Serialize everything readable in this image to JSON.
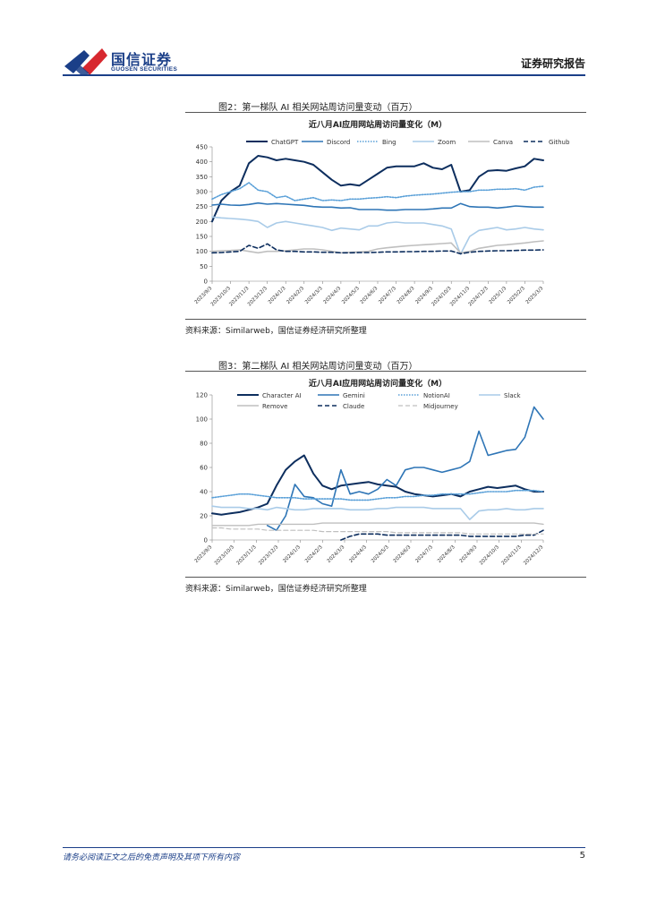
{
  "header": {
    "logo_cn": "国信证券",
    "logo_en": "GUOSEN SECURITIES",
    "report_type": "证券研究报告"
  },
  "figures": [
    {
      "title": "图2：第一梯队 AI 相关网站周访问量变动（百万）",
      "source": "资料来源：Similarweb，国信证券经济研究所整理"
    },
    {
      "title": "图3：第二梯队 AI 相关网站周访问量变动（百万）",
      "source": "资料来源：Similarweb，国信证券经济研究所整理"
    }
  ],
  "footer": {
    "disclaimer": "请务必阅读正文之后的免责声明及其项下所有内容",
    "page_number": "5"
  },
  "colors": {
    "brand_blue": "#1b3f88",
    "brand_red": "#d7282f"
  },
  "chart_data": [
    {
      "type": "line",
      "title": "近八月AI应用网站周访问量变化（M）",
      "xlabel": "",
      "ylabel": "",
      "ylim": [
        0,
        450
      ],
      "yticks": [
        0,
        50,
        100,
        150,
        200,
        250,
        300,
        350,
        400,
        450
      ],
      "x_tick_labels": [
        "2023/9/3",
        "2023/10/3",
        "2023/11/3",
        "2023/12/3",
        "2024/1/3",
        "2024/2/3",
        "2024/3/3",
        "2024/4/3",
        "2024/5/3",
        "2024/6/3",
        "2024/7/3",
        "2024/8/3",
        "2024/9/3",
        "2024/10/3",
        "2024/11/3",
        "2024/12/3",
        "2025/1/3",
        "2025/2/3",
        "2025/3/3"
      ],
      "x_count": 37,
      "legend_position": "top",
      "series": [
        {
          "name": "ChatGPT",
          "color": "#0d2e5e",
          "dash": "solid",
          "width": 2,
          "values": [
            200,
            270,
            300,
            320,
            395,
            420,
            415,
            405,
            410,
            405,
            400,
            390,
            365,
            340,
            320,
            325,
            320,
            340,
            360,
            380,
            385,
            385,
            385,
            395,
            380,
            375,
            390,
            300,
            305,
            350,
            370,
            372,
            370,
            378,
            385,
            410,
            405
          ]
        },
        {
          "name": "Discord",
          "color": "#2e75b6",
          "dash": "solid",
          "width": 1.6,
          "values": [
            255,
            258,
            255,
            254,
            257,
            262,
            258,
            260,
            258,
            256,
            254,
            250,
            248,
            248,
            245,
            246,
            240,
            240,
            240,
            238,
            238,
            240,
            240,
            240,
            242,
            245,
            245,
            260,
            250,
            248,
            248,
            245,
            248,
            252,
            250,
            248,
            248
          ]
        },
        {
          "name": "Bing",
          "color": "#5aa0d8",
          "dash": "dotted",
          "width": 1.6,
          "values": [
            275,
            290,
            300,
            310,
            330,
            305,
            300,
            280,
            285,
            270,
            275,
            280,
            270,
            272,
            270,
            275,
            275,
            278,
            280,
            283,
            280,
            285,
            288,
            290,
            292,
            295,
            298,
            300,
            300,
            305,
            305,
            308,
            308,
            310,
            305,
            315,
            318
          ]
        },
        {
          "name": "Zoom",
          "color": "#a9cbe8",
          "dash": "solid",
          "width": 1.6,
          "values": [
            215,
            212,
            210,
            208,
            205,
            200,
            180,
            195,
            200,
            195,
            190,
            185,
            180,
            170,
            178,
            175,
            172,
            185,
            185,
            195,
            198,
            195,
            195,
            195,
            190,
            185,
            175,
            90,
            150,
            170,
            175,
            180,
            172,
            175,
            180,
            175,
            172
          ]
        },
        {
          "name": "Canva",
          "color": "#bfbfbf",
          "dash": "solid",
          "width": 1.6,
          "values": [
            100,
            102,
            103,
            105,
            100,
            95,
            100,
            100,
            102,
            105,
            108,
            108,
            105,
            100,
            95,
            97,
            98,
            100,
            108,
            112,
            115,
            118,
            120,
            122,
            124,
            126,
            128,
            95,
            100,
            110,
            115,
            120,
            122,
            125,
            128,
            132,
            135
          ]
        },
        {
          "name": "Github",
          "color": "#0d2e5e",
          "dash": "dashed",
          "width": 1.6,
          "values": [
            95,
            96,
            98,
            100,
            120,
            110,
            125,
            105,
            100,
            100,
            98,
            98,
            97,
            97,
            95,
            95,
            96,
            96,
            97,
            98,
            98,
            99,
            99,
            100,
            100,
            101,
            101,
            92,
            97,
            100,
            101,
            102,
            102,
            103,
            104,
            104,
            105
          ]
        }
      ]
    },
    {
      "type": "line",
      "title": "近八月AI应用网站周访问量变化（M）",
      "xlabel": "",
      "ylabel": "",
      "ylim": [
        0,
        120
      ],
      "yticks": [
        0,
        20,
        40,
        60,
        80,
        100,
        120
      ],
      "x_tick_labels": [
        "2023/9/3",
        "2023/10/3",
        "2023/11/3",
        "2023/12/3",
        "2024/1/3",
        "2024/2/3",
        "2024/3/3",
        "2024/4/3",
        "2024/5/3",
        "2024/6/3",
        "2024/7/3",
        "2024/8/3",
        "2024/9/3",
        "2024/10/3",
        "2024/11/3",
        "2024/12/3"
      ],
      "x_count": 37,
      "legend_position": "top",
      "series": [
        {
          "name": "Character AI",
          "color": "#0d2e5e",
          "dash": "solid",
          "width": 2,
          "values": [
            22,
            21,
            22,
            23,
            25,
            27,
            30,
            45,
            58,
            65,
            70,
            55,
            45,
            42,
            45,
            46,
            47,
            48,
            46,
            45,
            44,
            40,
            38,
            37,
            36,
            37,
            38,
            36,
            40,
            42,
            44,
            43,
            44,
            45,
            42,
            40,
            40
          ]
        },
        {
          "name": "Gemini",
          "color": "#2e75b6",
          "dash": "solid",
          "width": 1.6,
          "values": [
            null,
            null,
            null,
            null,
            null,
            null,
            12,
            8,
            20,
            46,
            36,
            35,
            30,
            28,
            58,
            38,
            40,
            38,
            42,
            50,
            45,
            58,
            60,
            60,
            58,
            56,
            58,
            60,
            65,
            90,
            70,
            72,
            74,
            75,
            85,
            110,
            100
          ]
        },
        {
          "name": "NotionAI",
          "color": "#5aa0d8",
          "dash": "dotted",
          "width": 1.6,
          "values": [
            35,
            36,
            37,
            38,
            38,
            37,
            36,
            35,
            35,
            35,
            34,
            34,
            34,
            34,
            34,
            33,
            33,
            33,
            34,
            35,
            35,
            36,
            36,
            37,
            37,
            38,
            38,
            38,
            38,
            39,
            40,
            40,
            40,
            41,
            41,
            41,
            40
          ]
        },
        {
          "name": "Slack",
          "color": "#a9cbe8",
          "dash": "solid",
          "width": 1.6,
          "values": [
            28,
            27,
            27,
            27,
            26,
            26,
            25,
            27,
            26,
            25,
            25,
            26,
            26,
            26,
            26,
            25,
            25,
            25,
            26,
            26,
            27,
            27,
            27,
            27,
            26,
            26,
            26,
            26,
            17,
            24,
            25,
            25,
            26,
            25,
            25,
            26,
            26
          ]
        },
        {
          "name": "Remove",
          "color": "#bfbfbf",
          "dash": "solid",
          "width": 1.4,
          "values": [
            12,
            12,
            12,
            12,
            12,
            13,
            13,
            13,
            13,
            13,
            13,
            13,
            14,
            14,
            14,
            14,
            14,
            14,
            14,
            14,
            14,
            14,
            14,
            14,
            14,
            14,
            14,
            14,
            14,
            14,
            14,
            14,
            14,
            14,
            14,
            14,
            13
          ]
        },
        {
          "name": "Claude",
          "color": "#0d2e5e",
          "dash": "dashed",
          "width": 1.6,
          "values": [
            null,
            null,
            null,
            null,
            null,
            null,
            null,
            null,
            null,
            null,
            null,
            null,
            null,
            null,
            0,
            3,
            5,
            5,
            5,
            4,
            4,
            4,
            4,
            4,
            4,
            4,
            4,
            4,
            3,
            3,
            3,
            3,
            3,
            3,
            4,
            4,
            8
          ]
        },
        {
          "name": "Midjourney",
          "color": "#bfbfbf",
          "dash": "dashed",
          "width": 1.2,
          "values": [
            10,
            10,
            9,
            9,
            9,
            9,
            8,
            8,
            8,
            8,
            8,
            8,
            7,
            7,
            7,
            7,
            7,
            7,
            7,
            7,
            6,
            6,
            6,
            6,
            6,
            6,
            6,
            6,
            5,
            5,
            5,
            5,
            5,
            5,
            5,
            5,
            5
          ]
        }
      ]
    }
  ]
}
